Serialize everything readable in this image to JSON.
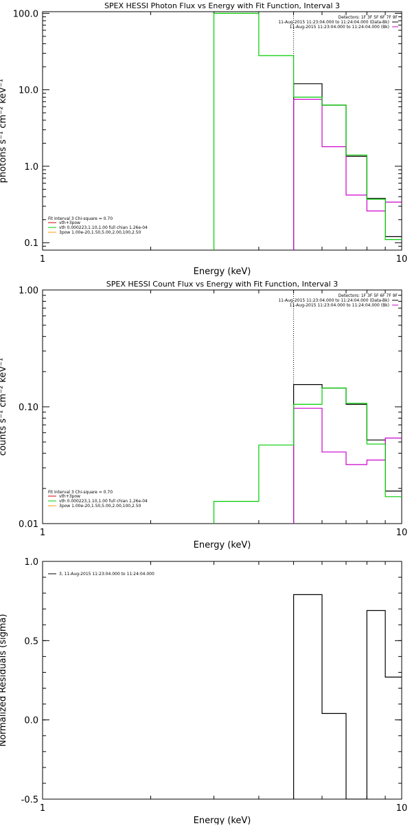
{
  "panels": [
    {
      "title": "SPEX HESSI Photon Flux vs Energy with Fit Function, Interval 3",
      "xlabel": "Energy (keV)",
      "ylabel": "photons s⁻¹ cm⁻² keV⁻¹",
      "xscale": "log",
      "yscale": "log",
      "xlim": [
        1,
        10
      ],
      "ylim": [
        0.08,
        105
      ],
      "xticks": [
        {
          "v": 1,
          "label": "1"
        },
        {
          "v": 10,
          "label": "10"
        }
      ],
      "yticks": [
        {
          "v": 0.1,
          "label": "0.1"
        },
        {
          "v": 1,
          "label": "1.0"
        },
        {
          "v": 10,
          "label": "10.0"
        },
        {
          "v": 100,
          "label": "100.0"
        }
      ],
      "vline": 5.0,
      "legend_right": [
        {
          "text": "Detectors: 1F 3F 5F 6F 7F 9F",
          "color": null
        },
        {
          "text": "11-Aug-2015 11:23:04.000 to 11:24:04.000 (Data-Bk)",
          "color": "#000000"
        },
        {
          "text": "11-Aug-2015 11:23:04.000 to 11:24:04.000 (Bk)",
          "color": "#cc00cc"
        }
      ],
      "legend_left_title": "Fit Interval  3   Chi-square = 0.70",
      "legend_left": [
        {
          "text": "vth+3pow",
          "color": "#cc0000"
        },
        {
          "text": "vth 0.000223,1.10,1.00  full chian 1.26e-04",
          "color": "#00cc00"
        },
        {
          "text": "3pow 1.00e-20,1.50,5.00,2.00,100,2.50",
          "color": "#ff9900"
        }
      ]
    },
    {
      "title": "SPEX HESSI Count Flux vs Energy with Fit Function, Interval 3",
      "xlabel": "Energy (keV)",
      "ylabel": "counts s⁻¹ cm⁻² keV⁻¹",
      "xscale": "log",
      "yscale": "log",
      "xlim": [
        1,
        10
      ],
      "ylim": [
        0.01,
        1.0
      ],
      "xticks": [
        {
          "v": 1,
          "label": "1"
        },
        {
          "v": 10,
          "label": "10"
        }
      ],
      "yticks": [
        {
          "v": 0.01,
          "label": "0.01"
        },
        {
          "v": 0.1,
          "label": "0.10"
        },
        {
          "v": 1,
          "label": "1.00"
        }
      ],
      "vline": 5.0,
      "legend_right": [
        {
          "text": "Detectors: 1F 3F 5F 6F 7F 9F",
          "color": null
        },
        {
          "text": "11-Aug-2015 11:23:04.000 to 11:24:04.000 (Data-Bk)",
          "color": "#000000"
        },
        {
          "text": "11-Aug-2015 11:23:04.000 to 11:24:04.000 (Bk)",
          "color": "#cc00cc"
        }
      ],
      "legend_left_title": "Fit Interval  3   Chi-square = 0.70",
      "legend_left": [
        {
          "text": "vth+3pow",
          "color": "#cc0000"
        },
        {
          "text": "vth 0.000223,1.10,1.00  full chian 1.26e-04",
          "color": "#00cc00"
        },
        {
          "text": "3pow 1.00e-20,1.50,5.00,2.00,100,2.50",
          "color": "#ff9900"
        }
      ]
    },
    {
      "title": "",
      "xlabel": "Energy (keV)",
      "ylabel": "Normalized Residuals (sigma)",
      "xscale": "log",
      "yscale": "linear",
      "xlim": [
        1,
        10
      ],
      "ylim": [
        -0.5,
        1.0
      ],
      "xticks": [
        {
          "v": 1,
          "label": "1"
        },
        {
          "v": 10,
          "label": "10"
        }
      ],
      "yticks": [
        {
          "v": -0.5,
          "label": "-0.5"
        },
        {
          "v": 0,
          "label": "0.0"
        },
        {
          "v": 0.5,
          "label": "0.5"
        },
        {
          "v": 1,
          "label": "1.0"
        }
      ],
      "vline": null,
      "legend_right": [],
      "legend_left_title": "",
      "legend_left": [
        {
          "text": "3, 11-Aug-2015 11:23:04.000 to 11:24:04.000",
          "color": "#000000"
        }
      ]
    }
  ],
  "chart_data": [
    {
      "type": "line",
      "title": "SPEX HESSI Photon Flux vs Energy with Fit Function, Interval 3",
      "xlabel": "Energy (keV)",
      "ylabel": "photons s⁻¹ cm⁻² keV⁻¹",
      "x_edges": [
        3.0,
        4.0,
        5.0,
        6.0,
        7.0,
        8.0,
        9.0,
        10.0
      ],
      "series": [
        {
          "name": "11-Aug-2015 11:23:04.000 to 11:24:04.000 (Data-Bk)",
          "color": "#000000",
          "values": [
            null,
            null,
            12.0,
            6.3,
            1.35,
            0.38,
            0.12
          ]
        },
        {
          "name": "11-Aug-2015 11:23:04.000 to 11:24:04.000 (Bk)",
          "color": "#cc00cc",
          "values": [
            null,
            null,
            7.5,
            1.8,
            0.42,
            0.26,
            0.34
          ]
        },
        {
          "name": "vth 0.000223,1.10,1.00  full chian 1.26e-04",
          "color": "#00cc00",
          "values": [
            100,
            28,
            8.0,
            6.3,
            1.4,
            0.37,
            0.11
          ]
        }
      ]
    },
    {
      "type": "line",
      "title": "SPEX HESSI Count Flux vs Energy with Fit Function, Interval 3",
      "xlabel": "Energy (keV)",
      "ylabel": "counts s⁻¹ cm⁻² keV⁻¹",
      "x_edges": [
        3.0,
        4.0,
        5.0,
        6.0,
        7.0,
        8.0,
        9.0,
        10.0
      ],
      "series": [
        {
          "name": "11-Aug-2015 11:23:04.000 to 11:24:04.000 (Data-Bk)",
          "color": "#000000",
          "values": [
            null,
            null,
            0.155,
            0.145,
            0.105,
            0.052,
            0.019
          ]
        },
        {
          "name": "11-Aug-2015 11:23:04.000 to 11:24:04.000 (Bk)",
          "color": "#cc00cc",
          "values": [
            null,
            null,
            0.097,
            0.041,
            0.032,
            0.035,
            0.054
          ]
        },
        {
          "name": "vth 0.000223,1.10,1.00  full chian 1.26e-04",
          "color": "#00cc00",
          "values": [
            0.0155,
            0.047,
            0.105,
            0.145,
            0.107,
            0.048,
            0.017
          ]
        }
      ]
    },
    {
      "type": "line",
      "title": "",
      "xlabel": "Energy (keV)",
      "ylabel": "Normalized Residuals (sigma)",
      "x_edges": [
        5.0,
        6.0,
        7.0,
        8.0,
        9.0,
        10.0
      ],
      "series": [
        {
          "name": "3, 11-Aug-2015 11:23:04.000 to 11:24:04.000",
          "color": "#000000",
          "values": [
            0.79,
            0.04,
            -0.5,
            0.69,
            0.27
          ]
        }
      ]
    }
  ]
}
